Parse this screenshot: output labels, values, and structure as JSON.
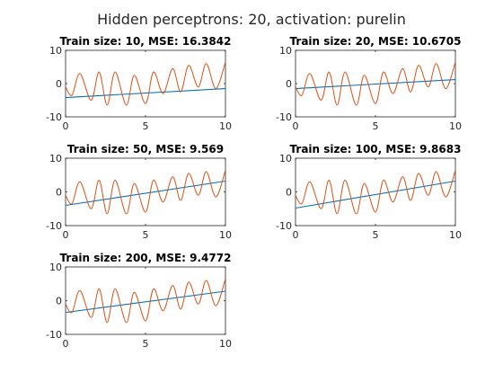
{
  "figure": {
    "title": "Hidden perceptrons: 20, activation: purelin"
  },
  "colors": {
    "fit_line": "#0072bd",
    "target_signal": "#d95319",
    "axes": "#262626"
  },
  "chart_data": [
    {
      "type": "line",
      "title": "Train size: 10, MSE: 16.3842",
      "xlim": [
        0,
        10
      ],
      "ylim": [
        -10,
        10
      ],
      "xticks": [
        "0",
        "5",
        "10"
      ],
      "yticks": [
        "10",
        "0",
        "-10"
      ],
      "series": [
        {
          "kind": "linear-fit",
          "x": [
            0,
            10
          ],
          "y": [
            -4.2,
            -1.5
          ]
        },
        {
          "kind": "target",
          "x": [
            0,
            0.4,
            0.9,
            1.6,
            2.1,
            2.6,
            3.1,
            3.8,
            4.3,
            5.0,
            5.5,
            6.1,
            6.7,
            7.2,
            7.7,
            8.3,
            8.8,
            9.4,
            10
          ],
          "y": [
            -1,
            -3.5,
            3.0,
            -5.0,
            3.5,
            -6.5,
            3.5,
            -6.5,
            2.5,
            -6.0,
            3.5,
            -3.0,
            4.5,
            -2.5,
            5.5,
            -1.0,
            6.0,
            -1.5,
            6.5
          ]
        }
      ]
    },
    {
      "type": "line",
      "title": "Train size: 20, MSE: 10.6705",
      "xlim": [
        0,
        10
      ],
      "ylim": [
        -10,
        10
      ],
      "xticks": [
        "0",
        "5",
        "10"
      ],
      "yticks": [
        "10",
        "0",
        "-10"
      ],
      "series": [
        {
          "kind": "linear-fit",
          "x": [
            0,
            10
          ],
          "y": [
            -1.5,
            1.2
          ]
        },
        {
          "kind": "target",
          "x": [
            0,
            0.4,
            0.9,
            1.6,
            2.1,
            2.6,
            3.1,
            3.8,
            4.3,
            5.0,
            5.5,
            6.1,
            6.7,
            7.2,
            7.7,
            8.3,
            8.8,
            9.4,
            10
          ],
          "y": [
            -1,
            -3.5,
            3.0,
            -5.0,
            3.5,
            -6.5,
            3.5,
            -6.5,
            2.5,
            -6.0,
            3.5,
            -3.0,
            4.5,
            -2.5,
            5.5,
            -1.0,
            6.0,
            -1.5,
            6.5
          ]
        }
      ]
    },
    {
      "type": "line",
      "title": "Train size: 50, MSE: 9.569",
      "xlim": [
        0,
        10
      ],
      "ylim": [
        -10,
        10
      ],
      "xticks": [
        "0",
        "5",
        "10"
      ],
      "yticks": [
        "10",
        "0",
        "-10"
      ],
      "series": [
        {
          "kind": "linear-fit",
          "x": [
            0,
            10
          ],
          "y": [
            -4.0,
            3.2
          ]
        },
        {
          "kind": "target",
          "x": [
            0,
            0.4,
            0.9,
            1.6,
            2.1,
            2.6,
            3.1,
            3.8,
            4.3,
            5.0,
            5.5,
            6.1,
            6.7,
            7.2,
            7.7,
            8.3,
            8.8,
            9.4,
            10
          ],
          "y": [
            -1,
            -3.5,
            3.0,
            -5.0,
            3.5,
            -6.5,
            3.5,
            -6.5,
            2.5,
            -6.0,
            3.5,
            -3.0,
            4.5,
            -2.5,
            5.5,
            -1.0,
            6.0,
            -1.5,
            6.5
          ]
        }
      ]
    },
    {
      "type": "line",
      "title": "Train size: 100, MSE: 9.8683",
      "xlim": [
        0,
        10
      ],
      "ylim": [
        -10,
        10
      ],
      "xticks": [
        "0",
        "5",
        "10"
      ],
      "yticks": [
        "10",
        "0",
        "-10"
      ],
      "series": [
        {
          "kind": "linear-fit",
          "x": [
            0,
            10
          ],
          "y": [
            -4.8,
            3.2
          ]
        },
        {
          "kind": "target",
          "x": [
            0,
            0.4,
            0.9,
            1.6,
            2.1,
            2.6,
            3.1,
            3.8,
            4.3,
            5.0,
            5.5,
            6.1,
            6.7,
            7.2,
            7.7,
            8.3,
            8.8,
            9.4,
            10
          ],
          "y": [
            -1,
            -3.5,
            3.0,
            -5.0,
            3.5,
            -6.5,
            3.5,
            -6.5,
            2.5,
            -6.0,
            3.5,
            -3.0,
            4.5,
            -2.5,
            5.5,
            -1.0,
            6.0,
            -1.5,
            6.5
          ]
        }
      ]
    },
    {
      "type": "line",
      "title": "Train size: 200, MSE: 9.4772",
      "xlim": [
        0,
        10
      ],
      "ylim": [
        -10,
        10
      ],
      "xticks": [
        "0",
        "5",
        "10"
      ],
      "yticks": [
        "10",
        "0",
        "-10"
      ],
      "series": [
        {
          "kind": "linear-fit",
          "x": [
            0,
            10
          ],
          "y": [
            -3.5,
            2.8
          ]
        },
        {
          "kind": "target",
          "x": [
            0,
            0.4,
            0.9,
            1.6,
            2.1,
            2.6,
            3.1,
            3.8,
            4.3,
            5.0,
            5.5,
            6.1,
            6.7,
            7.2,
            7.7,
            8.3,
            8.8,
            9.4,
            10
          ],
          "y": [
            -1,
            -3.5,
            3.0,
            -5.0,
            3.5,
            -6.5,
            3.5,
            -6.5,
            2.5,
            -6.0,
            3.5,
            -3.0,
            4.5,
            -2.5,
            5.5,
            -1.0,
            6.0,
            -1.5,
            6.5
          ]
        }
      ]
    }
  ]
}
